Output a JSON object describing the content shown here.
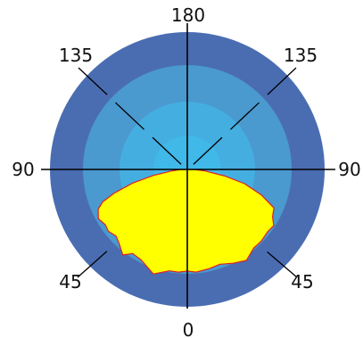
{
  "chart_data": {
    "type": "polar_area",
    "description_note": "Photometric (light distribution) polar plot.",
    "angle_labels": [
      {
        "angle_deg": 180,
        "text": "180"
      },
      {
        "angle_deg": 135,
        "side": "left",
        "text": "135"
      },
      {
        "angle_deg": 135,
        "side": "right",
        "text": "135"
      },
      {
        "angle_deg": 90,
        "side": "left",
        "text": "90"
      },
      {
        "angle_deg": 90,
        "side": "right",
        "text": "90"
      },
      {
        "angle_deg": 45,
        "side": "left",
        "text": "45"
      },
      {
        "angle_deg": 45,
        "side": "right",
        "text": "45"
      },
      {
        "angle_deg": 0,
        "text": "0"
      }
    ],
    "rings": {
      "count": 4,
      "colors_outer_to_inner": [
        "#4a6db2",
        "#4a99cf",
        "#45aee0",
        "#40b8e8"
      ]
    },
    "series": [
      {
        "fill": "#ffff00",
        "stroke": "#dd2222",
        "points": [
          {
            "angle": 90,
            "r": 0.05
          },
          {
            "angle": 84,
            "r": 0.12
          },
          {
            "angle": 80,
            "r": 0.25
          },
          {
            "angle": 76,
            "r": 0.41
          },
          {
            "angle": 72,
            "r": 0.56
          },
          {
            "angle": 69,
            "r": 0.66
          },
          {
            "angle": 66,
            "r": 0.71
          },
          {
            "angle": 61,
            "r": 0.74
          },
          {
            "angle": 56,
            "r": 0.72
          },
          {
            "angle": 52,
            "r": 0.73
          },
          {
            "angle": 47,
            "r": 0.71
          },
          {
            "angle": 43,
            "r": 0.73
          },
          {
            "angle": 37,
            "r": 0.78
          },
          {
            "angle": 33,
            "r": 0.73
          },
          {
            "angle": 27,
            "r": 0.74
          },
          {
            "angle": 18,
            "r": 0.8
          },
          {
            "angle": 10,
            "r": 0.75
          },
          {
            "angle": 5,
            "r": 0.75
          },
          {
            "angle": 0,
            "r": 0.74
          },
          {
            "angle": -5,
            "r": 0.75
          },
          {
            "angle": -12,
            "r": 0.74
          },
          {
            "angle": -19,
            "r": 0.73
          },
          {
            "angle": -26,
            "r": 0.76
          },
          {
            "angle": -33,
            "r": 0.79
          },
          {
            "angle": -40,
            "r": 0.75
          },
          {
            "angle": -46,
            "r": 0.75
          },
          {
            "angle": -52,
            "r": 0.74
          },
          {
            "angle": -57,
            "r": 0.75
          },
          {
            "angle": -61,
            "r": 0.71
          },
          {
            "angle": -66,
            "r": 0.69
          },
          {
            "angle": -71,
            "r": 0.57
          },
          {
            "angle": -76,
            "r": 0.43
          },
          {
            "angle": -80,
            "r": 0.28
          },
          {
            "angle": -85,
            "r": 0.13
          },
          {
            "angle": -90,
            "r": 0.05
          }
        ]
      }
    ]
  }
}
